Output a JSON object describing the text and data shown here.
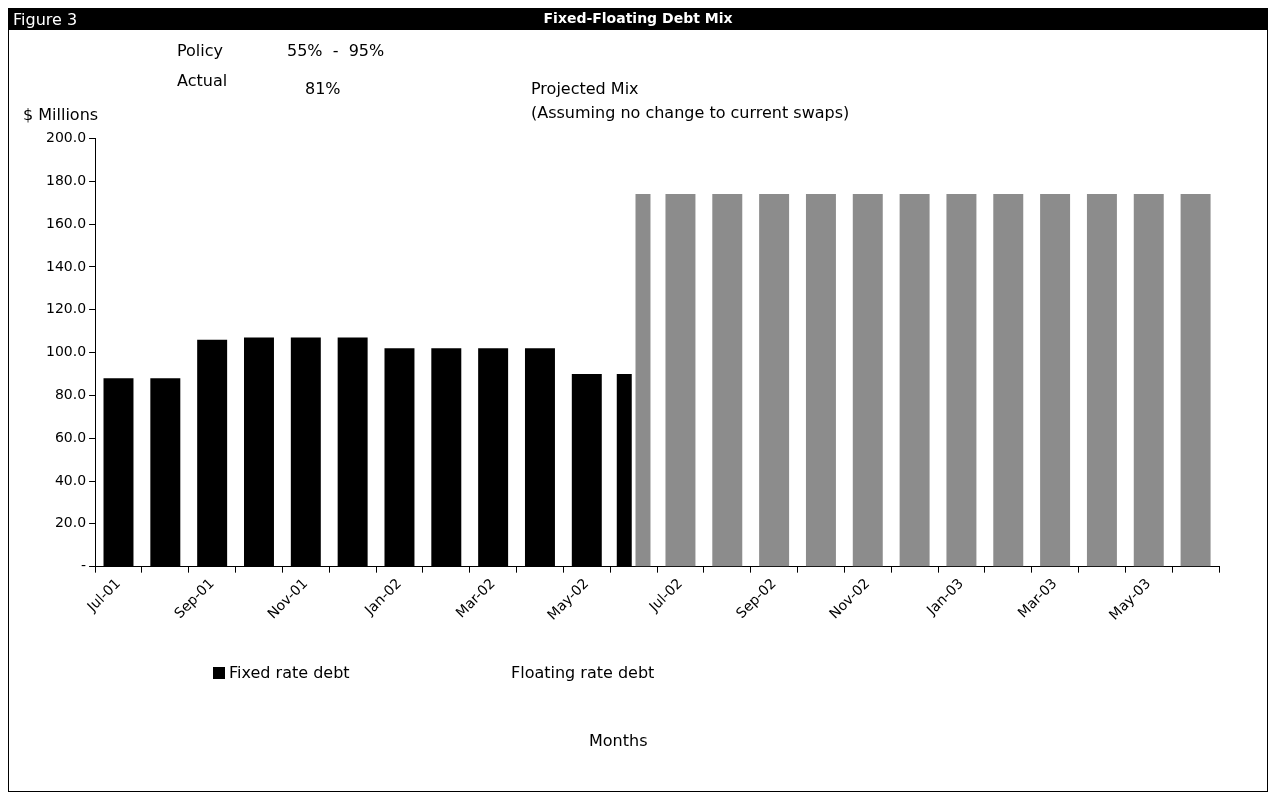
{
  "chart_data": {
    "type": "bar",
    "title": "Fixed-Floating Debt Mix",
    "ylabel": "$ Millions",
    "annotations": [
      "Figure 3",
      "Policy",
      "55%  -  95%",
      "Actual",
      "81%",
      "Projected Mix",
      "(Assuming no change to current swaps)",
      "Floating rate debt",
      "Months"
    ],
    "categories": [
      "Jul-01",
      null,
      "Sep-01",
      null,
      "Nov-01",
      null,
      "Jan-02",
      null,
      "Mar-02",
      null,
      "May-02",
      null,
      "Jul-02",
      null,
      "Sep-02",
      null,
      "Nov-02",
      null,
      "Jan-03",
      null,
      "Mar-03",
      null,
      "May-03",
      null
    ],
    "series": [
      {
        "name": "Fixed rate debt",
        "color": "#000000",
        "values": [
          88,
          88,
          106,
          107,
          107,
          107,
          102,
          102,
          102,
          102,
          90,
          90,
          null,
          null,
          null,
          null,
          null,
          null,
          null,
          null,
          null,
          null,
          null,
          null
        ]
      },
      {
        "color": "#8c8c8c",
        "values": [
          null,
          null,
          null,
          null,
          null,
          null,
          null,
          null,
          null,
          null,
          null,
          174,
          174,
          174,
          174,
          174,
          174,
          174,
          174,
          174,
          174,
          174,
          174,
          174
        ]
      }
    ],
    "ylim": [
      0,
      200
    ],
    "yticks": [
      {
        "value": 0,
        "label": "-"
      },
      {
        "value": 20,
        "label": "20.0"
      },
      {
        "value": 40,
        "label": "40.0"
      },
      {
        "value": 60,
        "label": "60.0"
      },
      {
        "value": 80,
        "label": "80.0"
      },
      {
        "value": 100,
        "label": "100.0"
      },
      {
        "value": 120,
        "label": "120.0"
      },
      {
        "value": 140,
        "label": "140.0"
      },
      {
        "value": 160,
        "label": "160.0"
      },
      {
        "value": 180,
        "label": "180.0"
      },
      {
        "value": 200,
        "label": "200.0"
      }
    ],
    "grid": false,
    "legend": "bottom"
  }
}
